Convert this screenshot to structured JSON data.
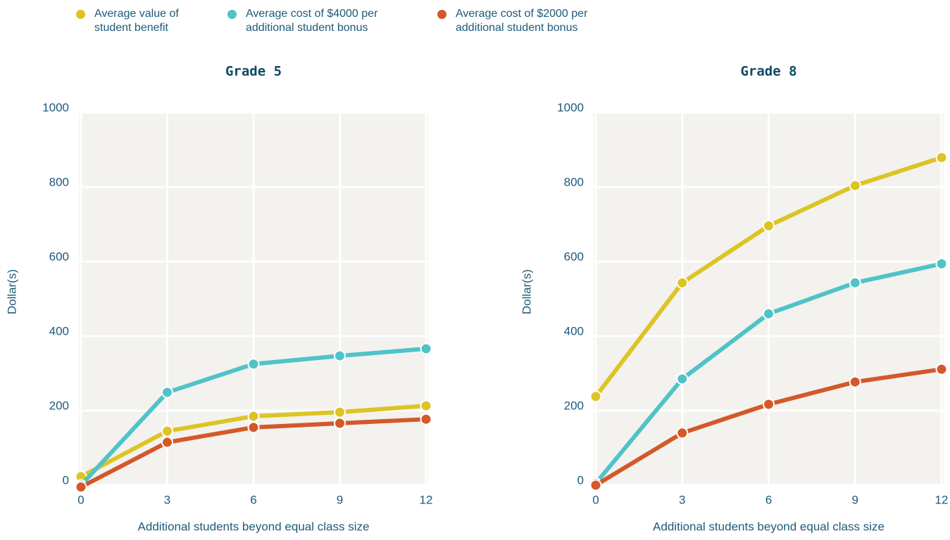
{
  "legend": [
    {
      "name": "Average value of student benefit",
      "color": "#dcc424"
    },
    {
      "name": "Average cost of $4000 per additional student bonus",
      "color": "#4fc3c8"
    },
    {
      "name": "Average cost of $2000 per additional student bonus",
      "color": "#d4582a"
    }
  ],
  "chart_data": [
    {
      "type": "line",
      "title": "Grade 5",
      "x_label": "Additional students beyond equal class size",
      "y_label": "Dollar(s)",
      "x": [
        0,
        3,
        6,
        9,
        12
      ],
      "xlim": [
        0,
        12
      ],
      "xticks": [
        0,
        3,
        6,
        9,
        12
      ],
      "ylim": [
        0,
        1000
      ],
      "yticks": [
        0,
        200,
        400,
        600,
        800,
        1000
      ],
      "grid": true,
      "series": [
        {
          "values": [
            23,
            145,
            185,
            196,
            213
          ]
        },
        {
          "values": [
            0,
            249,
            325,
            347,
            366
          ]
        },
        {
          "values": [
            -5,
            115,
            155,
            166,
            177
          ]
        }
      ]
    },
    {
      "type": "line",
      "title": "Grade 8",
      "x_label": "Additional students beyond equal class size",
      "y_label": "Dollar(s)",
      "x": [
        0,
        3,
        6,
        9,
        12
      ],
      "xlim": [
        0,
        12
      ],
      "xticks": [
        0,
        3,
        6,
        9,
        12
      ],
      "ylim": [
        0,
        1000
      ],
      "yticks": [
        0,
        200,
        400,
        600,
        800,
        1000
      ],
      "grid": true,
      "series": [
        {
          "values": [
            238,
            543,
            696,
            804,
            879
          ]
        },
        {
          "values": [
            5,
            285,
            460,
            543,
            594
          ]
        },
        {
          "values": [
            0,
            140,
            217,
            277,
            311
          ]
        }
      ]
    }
  ]
}
